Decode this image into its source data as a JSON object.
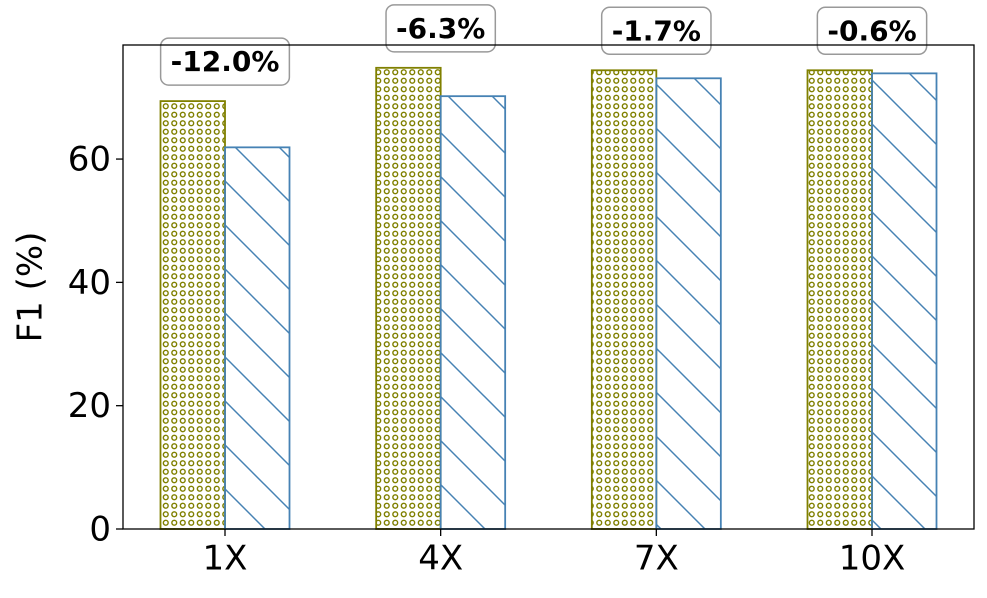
{
  "chart_data": {
    "type": "bar",
    "y_label": "F1 (%)",
    "categories": [
      "1X",
      "4X",
      "7X",
      "10X"
    ],
    "series": [
      {
        "color": "#808000",
        "hatch": "o",
        "values": [
          69.4,
          74.8,
          74.4,
          74.4
        ]
      },
      {
        "color": "#4682b4",
        "hatch": "\\",
        "values": [
          61.9,
          70.2,
          73.1,
          73.9
        ]
      }
    ],
    "annotations": [
      "-12.0%",
      "-6.3%",
      "-1.7%",
      "-0.6%"
    ],
    "ylim": [
      0,
      78.5
    ],
    "yticks": [
      0,
      20,
      40,
      60
    ],
    "grid": false
  }
}
